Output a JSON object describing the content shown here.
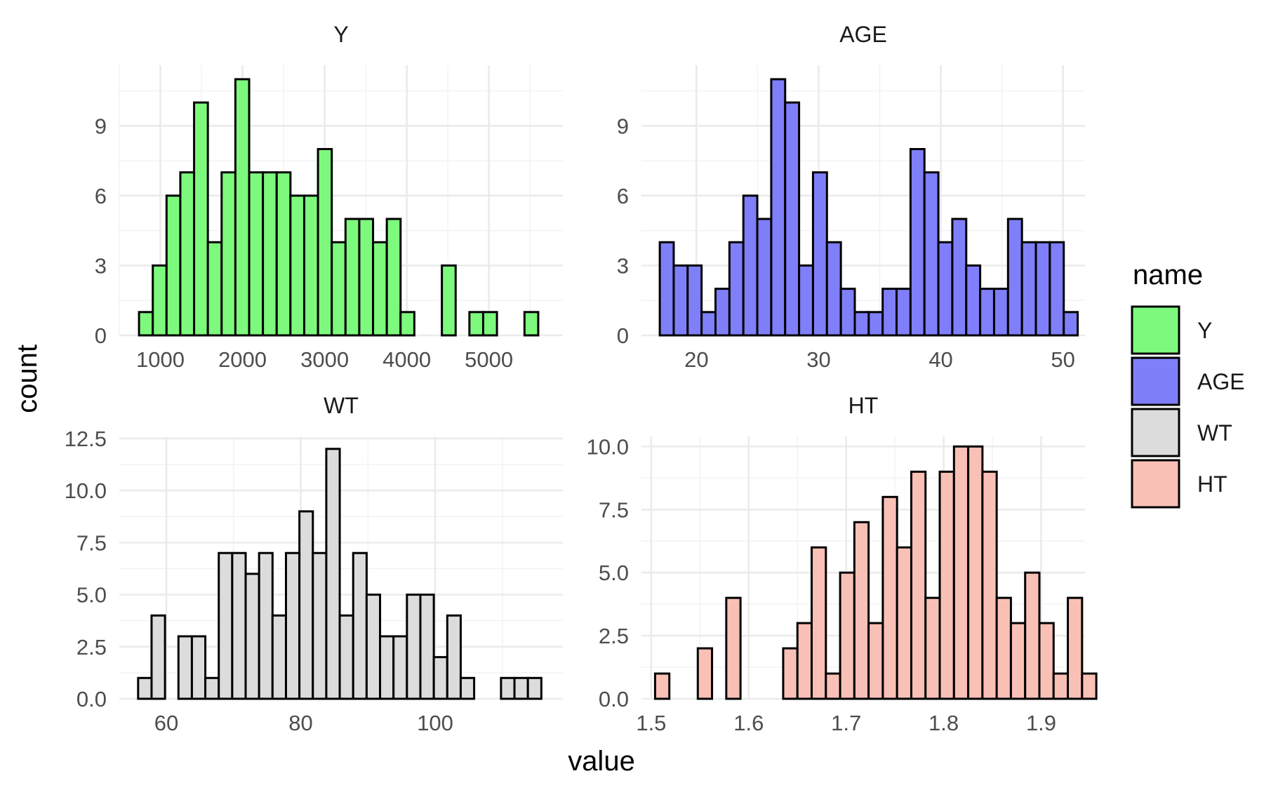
{
  "chart_data": {
    "type": "bar",
    "xlabel": "value",
    "ylabel": "count",
    "legend": {
      "title": "name",
      "position": "right",
      "entries": [
        {
          "label": "Y",
          "color": "#7df97d"
        },
        {
          "label": "AGE",
          "color": "#7f7ff9"
        },
        {
          "label": "WT",
          "color": "#dcdcdc"
        },
        {
          "label": "HT",
          "color": "#f9c0b6"
        }
      ]
    },
    "panels": [
      {
        "title": "Y",
        "color": "#7df97d",
        "xlim": [
          500,
          5900
        ],
        "ylim": [
          0,
          11.6
        ],
        "xticks": [
          1000,
          2000,
          3000,
          4000,
          5000
        ],
        "xtick_labels": [
          "1000",
          "2000",
          "3000",
          "4000",
          "5000"
        ],
        "yticks": [
          0,
          3,
          6,
          9
        ],
        "ytick_labels": [
          "0",
          "3",
          "6",
          "9"
        ],
        "bins": {
          "start": 740,
          "width": 167.6,
          "counts": [
            1,
            3,
            6,
            7,
            10,
            4,
            7,
            11,
            7,
            7,
            7,
            6,
            6,
            8,
            4,
            5,
            5,
            4,
            5,
            1,
            0,
            0,
            3,
            0,
            1,
            1,
            0,
            0,
            1
          ]
        }
      },
      {
        "title": "AGE",
        "color": "#7f7ff9",
        "xlim": [
          15.5,
          51.8
        ],
        "ylim": [
          0,
          11.6
        ],
        "xticks": [
          20,
          30,
          40,
          50
        ],
        "xtick_labels": [
          "20",
          "30",
          "40",
          "50"
        ],
        "yticks": [
          0,
          3,
          6,
          9
        ],
        "ytick_labels": [
          "0",
          "3",
          "6",
          "9"
        ],
        "bins": {
          "start": 17.0,
          "width": 1.14,
          "counts": [
            4,
            3,
            3,
            1,
            2,
            4,
            6,
            5,
            11,
            10,
            3,
            7,
            4,
            2,
            1,
            1,
            2,
            2,
            8,
            7,
            4,
            5,
            3,
            2,
            2,
            5,
            4,
            4,
            4,
            1
          ]
        }
      },
      {
        "title": "WT",
        "color": "#dcdcdc",
        "xlim": [
          53.0,
          119.0
        ],
        "ylim": [
          0,
          12.6
        ],
        "xticks": [
          60,
          80,
          100
        ],
        "xtick_labels": [
          "60",
          "80",
          "100"
        ],
        "yticks": [
          0,
          2.5,
          5,
          7.5,
          10,
          12.5
        ],
        "ytick_labels": [
          "0.0",
          "2.5",
          "5.0",
          "7.5",
          "10.0",
          "12.5"
        ],
        "bins": {
          "start": 55.8,
          "width": 2.0,
          "counts": [
            1,
            4,
            0,
            3,
            3,
            1,
            7,
            7,
            6,
            7,
            4,
            7,
            9,
            7,
            12,
            4,
            7,
            5,
            3,
            3,
            5,
            5,
            2,
            4,
            1,
            0,
            0,
            1,
            1,
            1
          ]
        }
      },
      {
        "title": "HT",
        "color": "#f9c0b6",
        "xlim": [
          1.49,
          1.945
        ],
        "ylim": [
          0,
          10.4
        ],
        "xticks": [
          1.5,
          1.6,
          1.7,
          1.8,
          1.9
        ],
        "xtick_labels": [
          "1.5",
          "1.6",
          "1.7",
          "1.8",
          "1.9"
        ],
        "yticks": [
          0,
          2.5,
          5,
          7.5,
          10
        ],
        "ytick_labels": [
          "0.0",
          "2.5",
          "5.0",
          "7.5",
          "10.0"
        ],
        "bins": {
          "start": 1.504,
          "width": 0.0146,
          "counts": [
            1,
            0,
            0,
            2,
            0,
            4,
            0,
            0,
            0,
            2,
            3,
            6,
            1,
            5,
            7,
            3,
            8,
            6,
            9,
            4,
            9,
            10,
            10,
            9,
            4,
            3,
            5,
            3,
            1,
            4,
            1
          ]
        }
      }
    ]
  }
}
